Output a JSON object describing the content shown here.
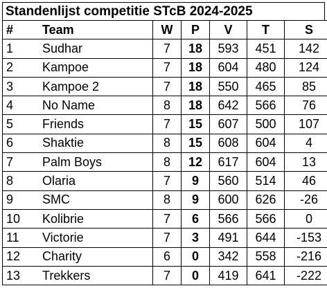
{
  "title": "Standenlijst competitie STcB 2024-2025",
  "headers": {
    "rank": "#",
    "team": "Team",
    "w": "W",
    "p": "P",
    "v": "V",
    "t": "T",
    "s": "S"
  },
  "rows": [
    {
      "rank": "1",
      "team": "Sudhar",
      "w": "7",
      "p": "18",
      "v": "593",
      "t": "451",
      "s": "142"
    },
    {
      "rank": "2",
      "team": "Kampoe",
      "w": "7",
      "p": "18",
      "v": "604",
      "t": "480",
      "s": "124"
    },
    {
      "rank": "3",
      "team": "Kampoe 2",
      "w": "7",
      "p": "18",
      "v": "550",
      "t": "465",
      "s": "85"
    },
    {
      "rank": "4",
      "team": "No Name",
      "w": "8",
      "p": "18",
      "v": "642",
      "t": "566",
      "s": "76"
    },
    {
      "rank": "5",
      "team": "Friends",
      "w": "7",
      "p": "15",
      "v": "607",
      "t": "500",
      "s": "107"
    },
    {
      "rank": "6",
      "team": "Shaktie",
      "w": "8",
      "p": "15",
      "v": "608",
      "t": "604",
      "s": "4"
    },
    {
      "rank": "7",
      "team": "Palm Boys",
      "w": "8",
      "p": "12",
      "v": "617",
      "t": "604",
      "s": "13"
    },
    {
      "rank": "8",
      "team": "Olaria",
      "w": "7",
      "p": "9",
      "v": "560",
      "t": "514",
      "s": "46"
    },
    {
      "rank": "9",
      "team": "SMC",
      "w": "8",
      "p": "9",
      "v": "600",
      "t": "626",
      "s": "-26"
    },
    {
      "rank": "10",
      "team": "Kolibrie",
      "w": "7",
      "p": "6",
      "v": "566",
      "t": "566",
      "s": "0"
    },
    {
      "rank": "11",
      "team": "Victorie",
      "w": "7",
      "p": "3",
      "v": "491",
      "t": "644",
      "s": "-153"
    },
    {
      "rank": "12",
      "team": "Charity",
      "w": "6",
      "p": "0",
      "v": "342",
      "t": "558",
      "s": "-216"
    },
    {
      "rank": "13",
      "team": "Trekkers",
      "w": "7",
      "p": "0",
      "v": "419",
      "t": "641",
      "s": "-222"
    }
  ]
}
